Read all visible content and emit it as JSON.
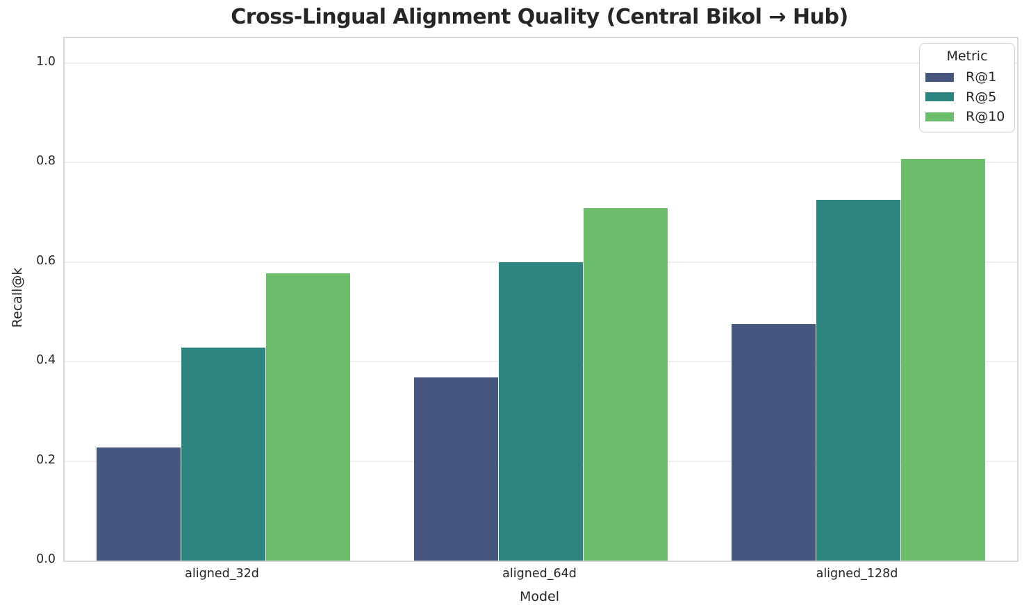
{
  "title": "Cross-Lingual Alignment Quality (Central Bikol → Hub)",
  "chart_data": {
    "type": "bar",
    "title": "Cross-Lingual Alignment Quality (Central Bikol → Hub)",
    "xlabel": "Model",
    "ylabel": "Recall@k",
    "categories": [
      "aligned_32d",
      "aligned_64d",
      "aligned_128d"
    ],
    "series": [
      {
        "name": "R@1",
        "color": "#46567f",
        "values": [
          0.227,
          0.368,
          0.476
        ]
      },
      {
        "name": "R@5",
        "color": "#2e847f",
        "values": [
          0.428,
          0.6,
          0.725
        ]
      },
      {
        "name": "R@10",
        "color": "#6cbe6c",
        "values": [
          0.577,
          0.708,
          0.807
        ]
      }
    ],
    "ylim": [
      0.0,
      1.05
    ],
    "yticks": [
      0.0,
      0.2,
      0.4,
      0.6,
      0.8,
      1.0
    ],
    "ytick_labels": [
      "0.0",
      "0.2",
      "0.4",
      "0.6",
      "0.8",
      "1.0"
    ],
    "grid": "horizontal",
    "legend_title": "Metric",
    "legend_position": "upper right",
    "colors": {
      "background": "#ffffff",
      "grid": "#eeeeee",
      "spine": "#d9d9d9",
      "text": "#262626"
    }
  }
}
